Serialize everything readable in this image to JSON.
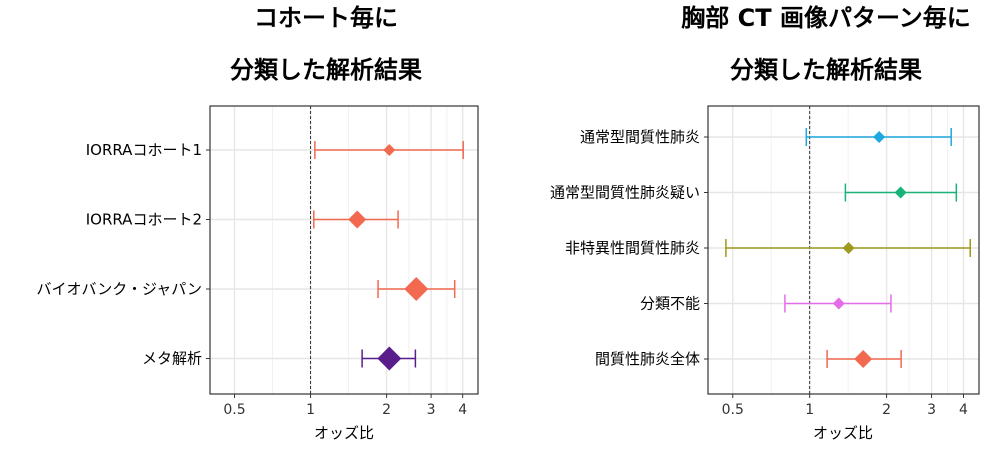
{
  "chart_data": [
    {
      "type": "forest",
      "title_lines": [
        "コホート毎に",
        "分類した解析結果"
      ],
      "xlabel": "オッズ比",
      "xscale": "log",
      "xlim": [
        0.4,
        4.6
      ],
      "xticks": [
        0.5,
        1,
        2,
        3,
        4
      ],
      "reference_line": 1,
      "grid": true,
      "rows": [
        {
          "label": "IORRAコホート1",
          "estimate": 2.05,
          "lower": 1.04,
          "upper": 4.02,
          "color": "#f2694f",
          "size": "small"
        },
        {
          "label": "IORRAコホート2",
          "estimate": 1.53,
          "lower": 1.03,
          "upper": 2.22,
          "color": "#f2694f",
          "size": "medium"
        },
        {
          "label": "バイオバンク・ジャパン",
          "estimate": 2.62,
          "lower": 1.85,
          "upper": 3.72,
          "color": "#f2694f",
          "size": "large"
        },
        {
          "label": "メタ解析",
          "estimate": 2.05,
          "lower": 1.6,
          "upper": 2.6,
          "color": "#5a1e8c",
          "size": "large"
        }
      ]
    },
    {
      "type": "forest",
      "title_lines": [
        "胸部 CT 画像パターン毎に",
        "分類した解析結果"
      ],
      "xlabel": "オッズ比",
      "xscale": "log",
      "xlim": [
        0.4,
        4.6
      ],
      "xticks": [
        0.5,
        1,
        2,
        3,
        4
      ],
      "reference_line": 1,
      "grid": true,
      "rows": [
        {
          "label": "通常型間質性肺炎",
          "estimate": 1.87,
          "lower": 0.97,
          "upper": 3.58,
          "color": "#1ea8e0",
          "size": "small"
        },
        {
          "label": "通常型間質性肺炎疑い",
          "estimate": 2.27,
          "lower": 1.38,
          "upper": 3.75,
          "color": "#19b37a",
          "size": "small"
        },
        {
          "label": "非特異性間質性肺炎",
          "estimate": 1.42,
          "lower": 0.47,
          "upper": 4.25,
          "color": "#9e9a1c",
          "size": "small"
        },
        {
          "label": "分類不能",
          "estimate": 1.3,
          "lower": 0.8,
          "upper": 2.08,
          "color": "#e56ce8",
          "size": "small"
        },
        {
          "label": "間質性肺炎全体",
          "estimate": 1.62,
          "lower": 1.17,
          "upper": 2.28,
          "color": "#f2694f",
          "size": "medium"
        }
      ]
    }
  ]
}
